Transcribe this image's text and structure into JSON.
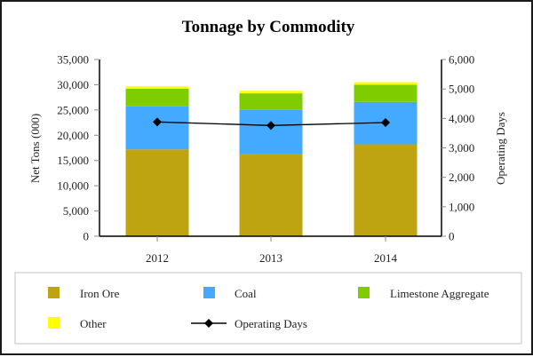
{
  "chart_data": {
    "type": "bar",
    "stacked": true,
    "title": "Tonnage by Commodity",
    "xlabel": "",
    "ylabel": "Net Tons (000)",
    "y2label": "Operating Days",
    "categories": [
      "2012",
      "2013",
      "2014"
    ],
    "ylim": [
      0,
      35000
    ],
    "y2lim": [
      0,
      6000
    ],
    "yticks": [
      0,
      5000,
      10000,
      15000,
      20000,
      25000,
      30000,
      35000
    ],
    "ytick_labels": [
      "0",
      "5,000",
      "10,000",
      "15,000",
      "20,000",
      "25,000",
      "30,000",
      "35,000"
    ],
    "y2ticks": [
      0,
      1000,
      2000,
      3000,
      4000,
      5000,
      6000
    ],
    "y2tick_labels": [
      "0",
      "1,000",
      "2,000",
      "3,000",
      "4,000",
      "5,000",
      "6,000"
    ],
    "grid": false,
    "legend_position": "bottom",
    "series": [
      {
        "name": "Iron Ore",
        "type": "bar",
        "axis": "left",
        "color": "#BFA412",
        "values": [
          17200,
          16200,
          18200
        ]
      },
      {
        "name": "Coal",
        "type": "bar",
        "axis": "left",
        "color": "#44AAFF",
        "values": [
          8500,
          8800,
          8400
        ]
      },
      {
        "name": "Limestone Aggregate",
        "type": "bar",
        "axis": "left",
        "color": "#7FCC00",
        "values": [
          3500,
          3300,
          3400
        ]
      },
      {
        "name": "Other",
        "type": "bar",
        "axis": "left",
        "color": "#FFFF00",
        "values": [
          500,
          500,
          500
        ]
      },
      {
        "name": "Operating Days",
        "type": "line",
        "axis": "right",
        "color": "#000000",
        "marker": "diamond",
        "values": [
          3880,
          3760,
          3860
        ]
      }
    ]
  },
  "legend": {
    "items": [
      {
        "label": "Iron Ore",
        "kind": "swatch",
        "color": "#BFA412"
      },
      {
        "label": "Coal",
        "kind": "swatch",
        "color": "#44AAFF"
      },
      {
        "label": "Limestone Aggregate",
        "kind": "swatch",
        "color": "#7FCC00"
      },
      {
        "label": "Other",
        "kind": "swatch",
        "color": "#FFFF00"
      },
      {
        "label": "Operating Days",
        "kind": "line-diamond",
        "color": "#000000"
      }
    ]
  }
}
